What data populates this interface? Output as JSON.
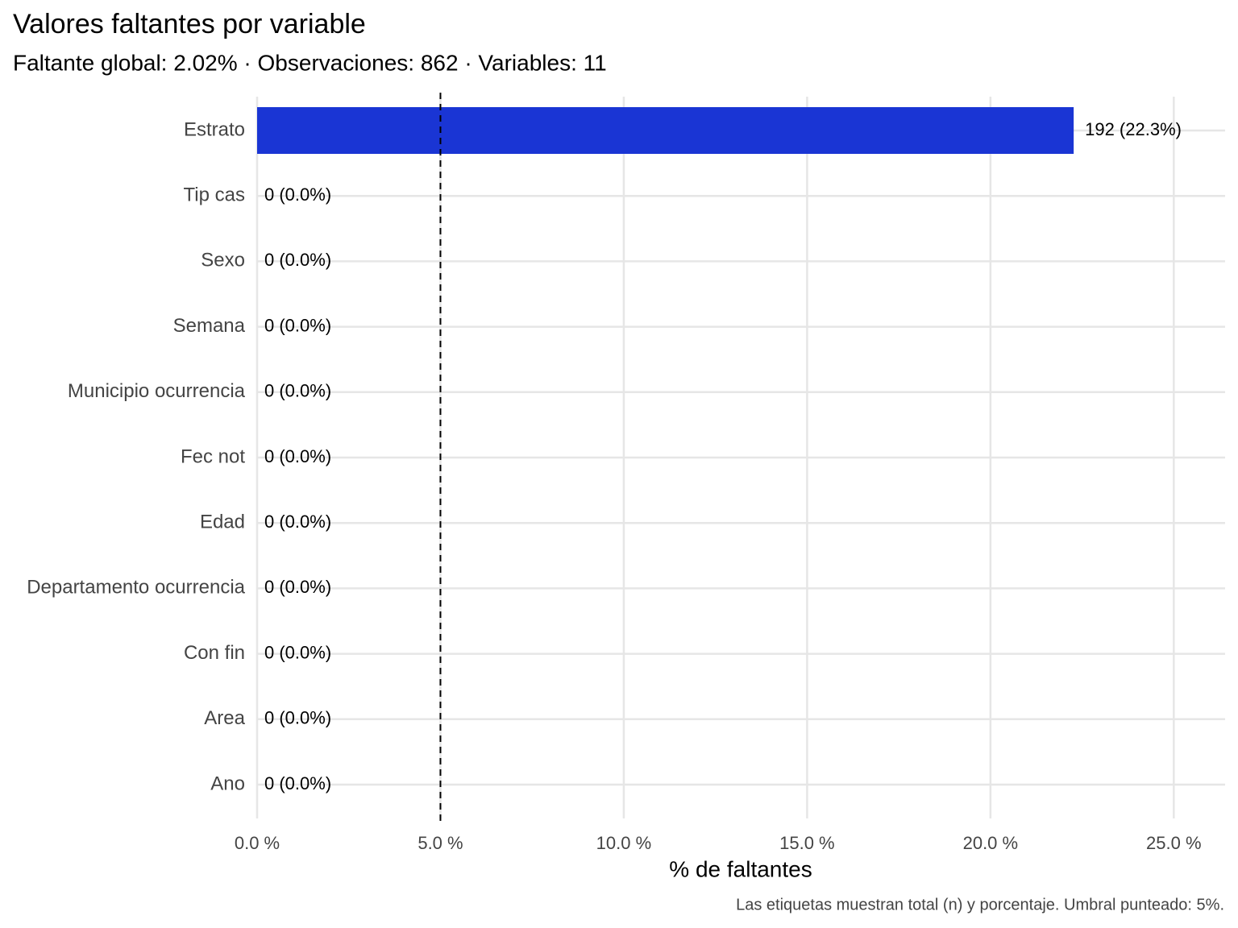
{
  "chart_data": {
    "type": "barh",
    "title": "Valores faltantes por variable",
    "subtitle": "Faltante global: 2.02% · Observaciones: 862 · Variables: 11",
    "x_label": "% de faltantes",
    "caption": "Las etiquetas muestran total (n) y porcentaje. Umbral punteado: 5%.",
    "categories": [
      "Estrato",
      "Tip cas",
      "Sexo",
      "Semana",
      "Municipio ocurrencia",
      "Fec not",
      "Edad",
      "Departamento ocurrencia",
      "Con fin",
      "Area",
      "Ano"
    ],
    "values": [
      22.27,
      0,
      0,
      0,
      0,
      0,
      0,
      0,
      0,
      0,
      0
    ],
    "value_labels": [
      "192 (22.3%)",
      "0 (0.0%)",
      "0 (0.0%)",
      "0 (0.0%)",
      "0 (0.0%)",
      "0 (0.0%)",
      "0 (0.0%)",
      "0 (0.0%)",
      "0 (0.0%)",
      "0 (0.0%)",
      "0 (0.0%)"
    ],
    "color": "#1a35d4",
    "threshold": 5,
    "xlim": [
      0,
      26.4
    ],
    "xticks": [
      {
        "value": 0,
        "label": "0.0 %"
      },
      {
        "value": 5,
        "label": "5.0 %"
      },
      {
        "value": 10,
        "label": "10.0 %"
      },
      {
        "value": 15,
        "label": "15.0 %"
      },
      {
        "value": 20,
        "label": "20.0 %"
      },
      {
        "value": 25,
        "label": "25.0 %"
      }
    ],
    "grid": true
  }
}
